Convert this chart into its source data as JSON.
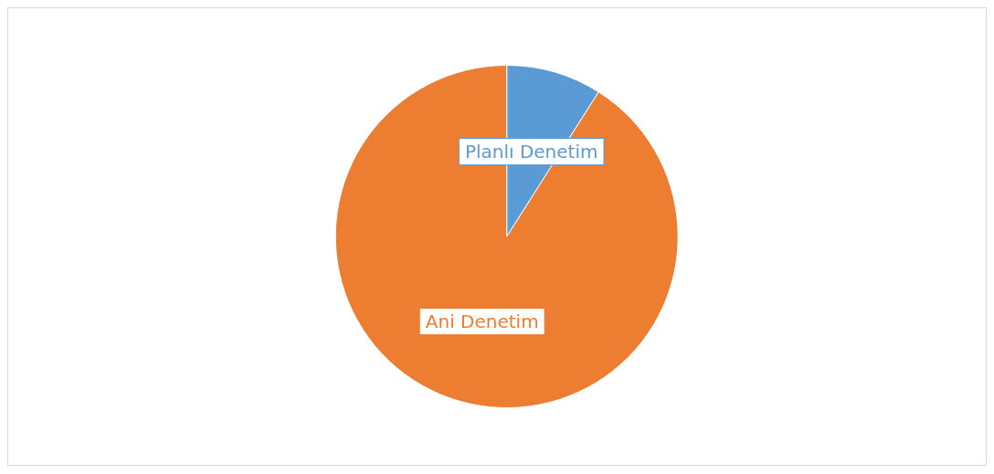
{
  "chart_data": {
    "type": "pie",
    "categories": [
      "Planlı Denetim",
      "Ani Denetim"
    ],
    "values": [
      9,
      91
    ],
    "colors": [
      "#5b9bd5",
      "#ed7d31"
    ],
    "legend": false
  }
}
